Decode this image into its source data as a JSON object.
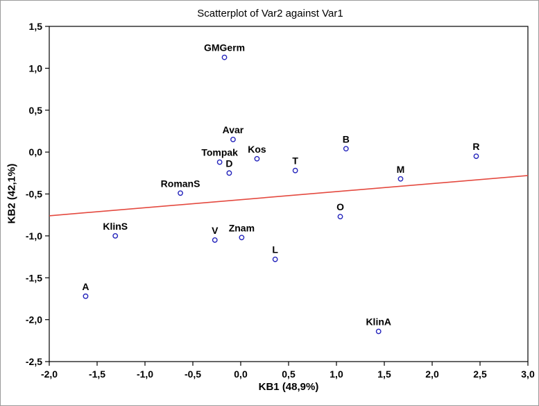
{
  "figure": {
    "title": "Scatterplot of Var2 against Var1",
    "x_axis_label": "KB1 (48,9%)",
    "y_axis_label": "KB2 (42,1%)"
  },
  "chart_data": {
    "type": "scatter",
    "title": "Scatterplot of Var2 against Var1",
    "xlabel": "KB1 (48,9%)",
    "ylabel": "KB2 (42,1%)",
    "xlim": [
      -2.0,
      3.0
    ],
    "ylim": [
      -2.5,
      1.5
    ],
    "x_ticks": [
      -2.0,
      -1.5,
      -1.0,
      -0.5,
      0.0,
      0.5,
      1.0,
      1.5,
      2.0,
      2.5,
      3.0
    ],
    "x_tick_labels": [
      "-2,0",
      "-1,5",
      "-1,0",
      "-0,5",
      "0,0",
      "0,5",
      "1,0",
      "1,5",
      "2,0",
      "2,5",
      "3,0"
    ],
    "y_ticks": [
      -2.5,
      -2.0,
      -1.5,
      -1.0,
      -0.5,
      0.0,
      0.5,
      1.0,
      1.5
    ],
    "y_tick_labels": [
      "-2,5",
      "-2,0",
      "-1,5",
      "-1,0",
      "-0,5",
      "0,0",
      "0,5",
      "1,0",
      "1,5"
    ],
    "grid": false,
    "legend": "none",
    "point_style": {
      "stroke": "#2222bb",
      "fill": "#ffffff",
      "radius": 3.2
    },
    "points": [
      {
        "label": "GMGerm",
        "x": -0.17,
        "y": 1.13
      },
      {
        "label": "Avar",
        "x": -0.08,
        "y": 0.15
      },
      {
        "label": "Tompak",
        "x": -0.22,
        "y": -0.12
      },
      {
        "label": "D",
        "x": -0.12,
        "y": -0.25
      },
      {
        "label": "Kos",
        "x": 0.17,
        "y": -0.08
      },
      {
        "label": "T",
        "x": 0.57,
        "y": -0.22
      },
      {
        "label": "B",
        "x": 1.1,
        "y": 0.04
      },
      {
        "label": "R",
        "x": 2.46,
        "y": -0.05
      },
      {
        "label": "M",
        "x": 1.67,
        "y": -0.32
      },
      {
        "label": "RomanS",
        "x": -0.63,
        "y": -0.49
      },
      {
        "label": "O",
        "x": 1.04,
        "y": -0.77
      },
      {
        "label": "KlinS",
        "x": -1.31,
        "y": -1.0
      },
      {
        "label": "V",
        "x": -0.27,
        "y": -1.05
      },
      {
        "label": "Znam",
        "x": 0.01,
        "y": -1.02
      },
      {
        "label": "L",
        "x": 0.36,
        "y": -1.28
      },
      {
        "label": "A",
        "x": -1.62,
        "y": -1.72
      },
      {
        "label": "KlinA",
        "x": 1.44,
        "y": -2.14
      }
    ],
    "trend_line": {
      "x1": -2.0,
      "y1": -0.76,
      "x2": 3.0,
      "y2": -0.28,
      "color": "#e4493f"
    }
  }
}
